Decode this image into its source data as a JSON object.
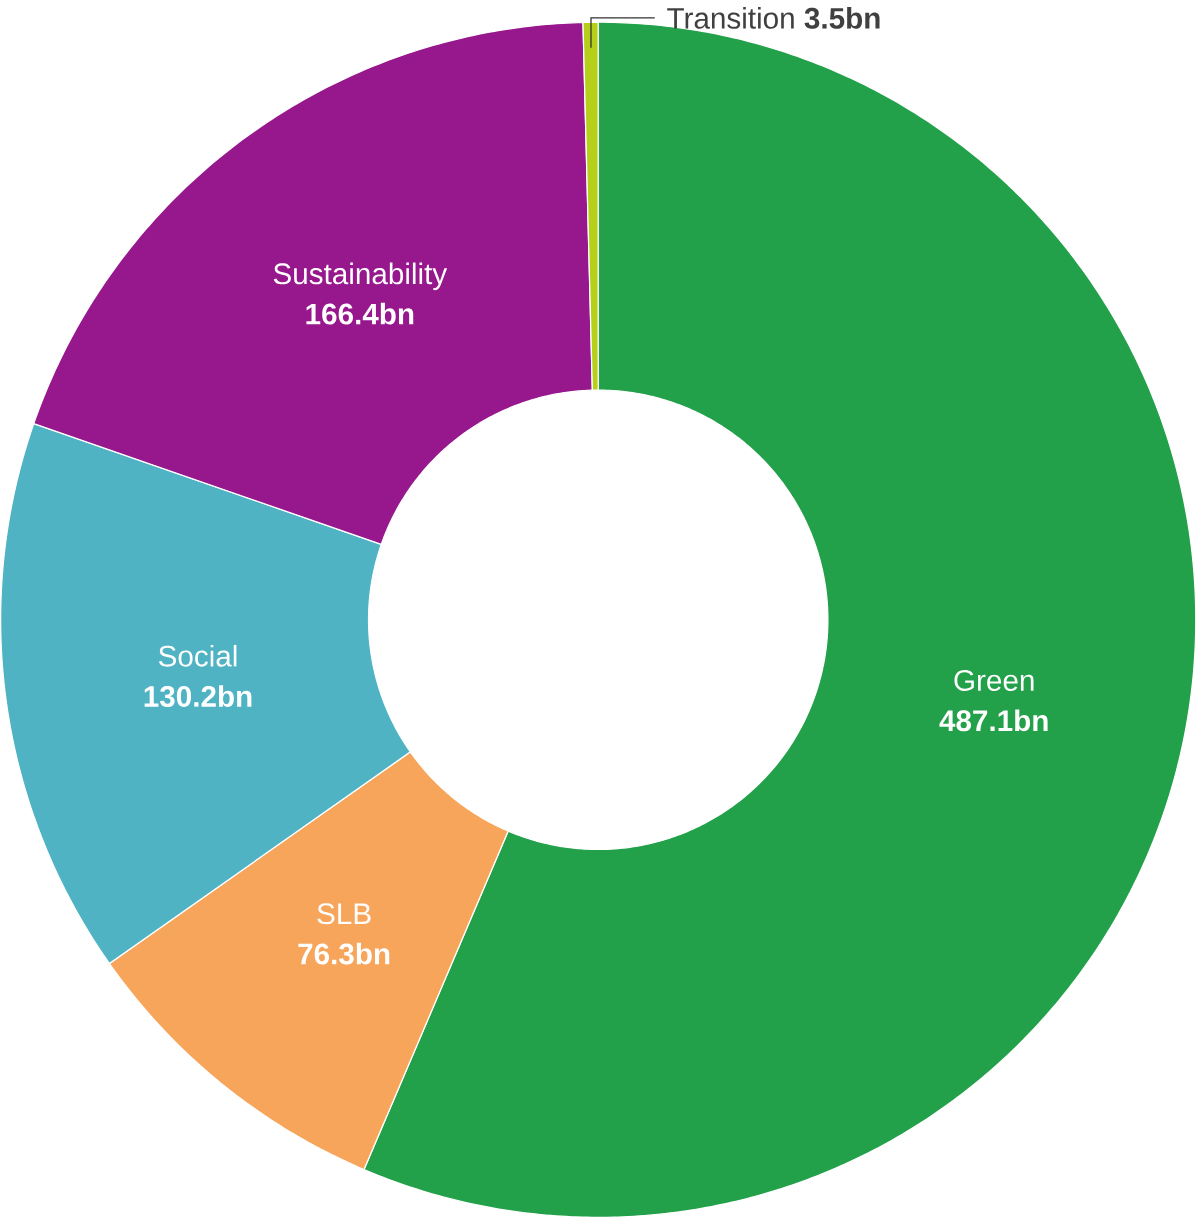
{
  "chart_data": {
    "type": "donut",
    "categories": [
      "Green",
      "SLB",
      "Social",
      "Sustainability",
      "Transition"
    ],
    "values": [
      487.1,
      76.3,
      130.2,
      166.4,
      3.5
    ],
    "colors": [
      "#23a04a",
      "#f7a55a",
      "#4fb3c4",
      "#97178d",
      "#b5cf1a"
    ],
    "value_labels": [
      "487.1bn",
      "76.3bn",
      "130.2bn",
      "166.4bn",
      "3.5bn"
    ]
  }
}
